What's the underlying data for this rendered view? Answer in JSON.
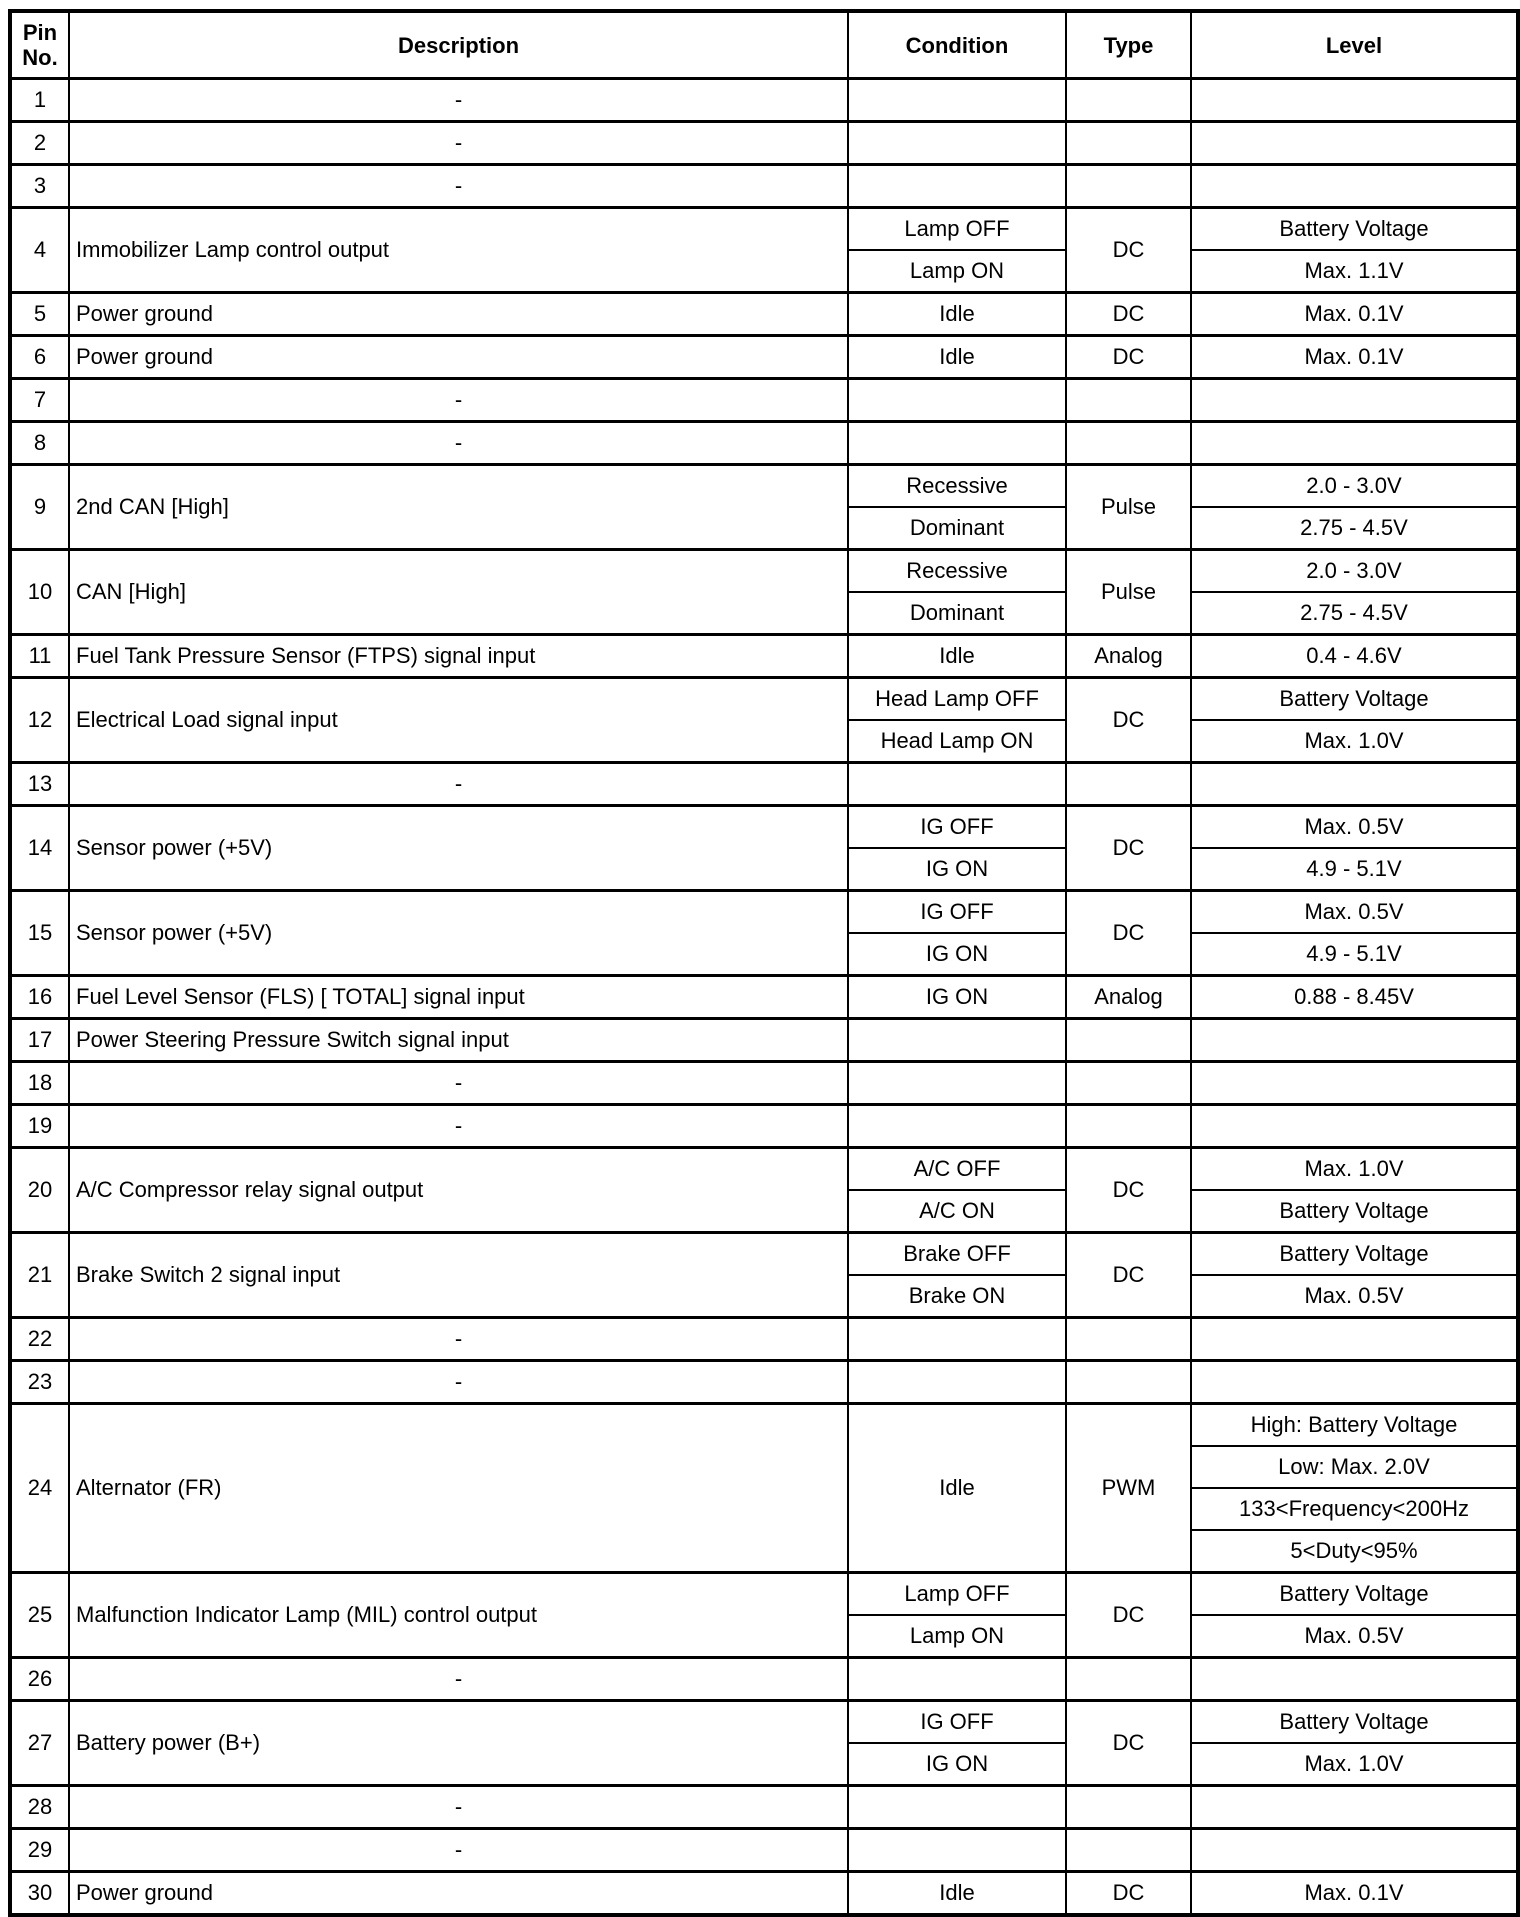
{
  "header": {
    "pin": "Pin No.",
    "description": "Description",
    "condition": "Condition",
    "type": "Type",
    "level": "Level"
  },
  "rows": [
    {
      "pin": "1",
      "description": "-",
      "conditions": [],
      "type": "",
      "levels": []
    },
    {
      "pin": "2",
      "description": "-",
      "conditions": [],
      "type": "",
      "levels": []
    },
    {
      "pin": "3",
      "description": "-",
      "conditions": [],
      "type": "",
      "levels": []
    },
    {
      "pin": "4",
      "description": "Immobilizer Lamp control output",
      "conditions": [
        "Lamp OFF",
        "Lamp ON"
      ],
      "type": "DC",
      "levels": [
        "Battery Voltage",
        "Max. 1.1V"
      ]
    },
    {
      "pin": "5",
      "description": "Power ground",
      "conditions": [
        "Idle"
      ],
      "type": "DC",
      "levels": [
        "Max. 0.1V"
      ]
    },
    {
      "pin": "6",
      "description": "Power ground",
      "conditions": [
        "Idle"
      ],
      "type": "DC",
      "levels": [
        "Max. 0.1V"
      ]
    },
    {
      "pin": "7",
      "description": "-",
      "conditions": [],
      "type": "",
      "levels": []
    },
    {
      "pin": "8",
      "description": "-",
      "conditions": [],
      "type": "",
      "levels": []
    },
    {
      "pin": "9",
      "description": "2nd CAN [High]",
      "conditions": [
        "Recessive",
        "Dominant"
      ],
      "type": "Pulse",
      "levels": [
        "2.0 - 3.0V",
        "2.75 - 4.5V"
      ]
    },
    {
      "pin": "10",
      "description": "CAN [High]",
      "conditions": [
        "Recessive",
        "Dominant"
      ],
      "type": "Pulse",
      "levels": [
        "2.0 - 3.0V",
        "2.75 - 4.5V"
      ]
    },
    {
      "pin": "11",
      "description": "Fuel Tank Pressure Sensor (FTPS) signal input",
      "conditions": [
        "Idle"
      ],
      "type": "Analog",
      "levels": [
        "0.4 - 4.6V"
      ]
    },
    {
      "pin": "12",
      "description": "Electrical Load signal input",
      "conditions": [
        "Head Lamp OFF",
        "Head Lamp ON"
      ],
      "type": "DC",
      "levels": [
        "Battery Voltage",
        "Max. 1.0V"
      ]
    },
    {
      "pin": "13",
      "description": "-",
      "conditions": [],
      "type": "",
      "levels": []
    },
    {
      "pin": "14",
      "description": "Sensor power (+5V)",
      "conditions": [
        "IG OFF",
        "IG ON"
      ],
      "type": "DC",
      "levels": [
        "Max. 0.5V",
        "4.9 - 5.1V"
      ]
    },
    {
      "pin": "15",
      "description": "Sensor power (+5V)",
      "conditions": [
        "IG OFF",
        "IG ON"
      ],
      "type": "DC",
      "levels": [
        "Max. 0.5V",
        "4.9 - 5.1V"
      ]
    },
    {
      "pin": "16",
      "description": "Fuel Level Sensor (FLS) [ TOTAL] signal input",
      "conditions": [
        "IG ON"
      ],
      "type": "Analog",
      "levels": [
        "0.88 - 8.45V"
      ]
    },
    {
      "pin": "17",
      "description": "Power Steering Pressure Switch signal input",
      "conditions": [],
      "type": "",
      "levels": []
    },
    {
      "pin": "18",
      "description": "-",
      "conditions": [],
      "type": "",
      "levels": []
    },
    {
      "pin": "19",
      "description": "-",
      "conditions": [],
      "type": "",
      "levels": []
    },
    {
      "pin": "20",
      "description": "A/C Compressor relay signal output",
      "conditions": [
        "A/C OFF",
        "A/C ON"
      ],
      "type": "DC",
      "levels": [
        "Max. 1.0V",
        "Battery Voltage"
      ]
    },
    {
      "pin": "21",
      "description": "Brake Switch 2 signal input",
      "conditions": [
        "Brake OFF",
        "Brake ON"
      ],
      "type": "DC",
      "levels": [
        "Battery Voltage",
        "Max. 0.5V"
      ]
    },
    {
      "pin": "22",
      "description": "-",
      "conditions": [],
      "type": "",
      "levels": []
    },
    {
      "pin": "23",
      "description": "-",
      "conditions": [],
      "type": "",
      "levels": []
    },
    {
      "pin": "24",
      "description": "Alternator (FR)",
      "conditions": [
        "Idle"
      ],
      "type": "PWM",
      "levels": [
        "High: Battery Voltage",
        "Low: Max. 2.0V",
        "133<Frequency<200Hz",
        "5<Duty<95%"
      ]
    },
    {
      "pin": "25",
      "description": "Malfunction Indicator Lamp (MIL) control output",
      "conditions": [
        "Lamp OFF",
        "Lamp ON"
      ],
      "type": "DC",
      "levels": [
        "Battery Voltage",
        "Max. 0.5V"
      ]
    },
    {
      "pin": "26",
      "description": "-",
      "conditions": [],
      "type": "",
      "levels": []
    },
    {
      "pin": "27",
      "description": "Battery power (B+)",
      "conditions": [
        "IG OFF",
        "IG ON"
      ],
      "type": "DC",
      "levels": [
        "Battery Voltage",
        "Max. 1.0V"
      ]
    },
    {
      "pin": "28",
      "description": "-",
      "conditions": [],
      "type": "",
      "levels": []
    },
    {
      "pin": "29",
      "description": "-",
      "conditions": [],
      "type": "",
      "levels": []
    },
    {
      "pin": "30",
      "description": "Power ground",
      "conditions": [
        "Idle"
      ],
      "type": "DC",
      "levels": [
        "Max. 0.1V"
      ]
    }
  ]
}
